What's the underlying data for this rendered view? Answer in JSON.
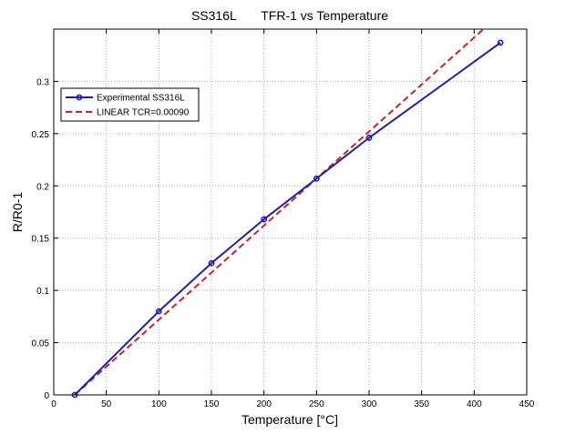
{
  "chart_data": {
    "type": "line",
    "title": "SS316L       TFR-1 vs Temperature",
    "xlabel": "Temperature [°C]",
    "ylabel": "R/R0-1",
    "xlim": [
      0,
      450
    ],
    "ylim": [
      0,
      0.35
    ],
    "xticks": [
      0,
      50,
      100,
      150,
      200,
      250,
      300,
      350,
      400,
      450
    ],
    "yticks": [
      0,
      0.05,
      0.1,
      0.15,
      0.2,
      0.25,
      0.3
    ],
    "xtick_labels": [
      "0",
      "50",
      "100",
      "150",
      "200",
      "250",
      "300",
      "350",
      "400",
      "450"
    ],
    "ytick_labels": [
      "0",
      "0.05",
      "0.1",
      "0.15",
      "0.2",
      "0.25",
      "0.3"
    ],
    "grid": true,
    "legend_position": "top-left",
    "series": [
      {
        "name": "Experimental SS316L",
        "style": "solid-with-circle-markers",
        "color": "#1f1fb4",
        "x": [
          20,
          100,
          150,
          200,
          250,
          300,
          425
        ],
        "y": [
          0.0,
          0.08,
          0.126,
          0.168,
          0.207,
          0.246,
          0.337
        ]
      },
      {
        "name": "LINEAR TCR=0.00090",
        "style": "dashed",
        "color": "#cc2222",
        "x": [
          20,
          410
        ],
        "y": [
          0.0,
          0.351
        ]
      }
    ]
  }
}
